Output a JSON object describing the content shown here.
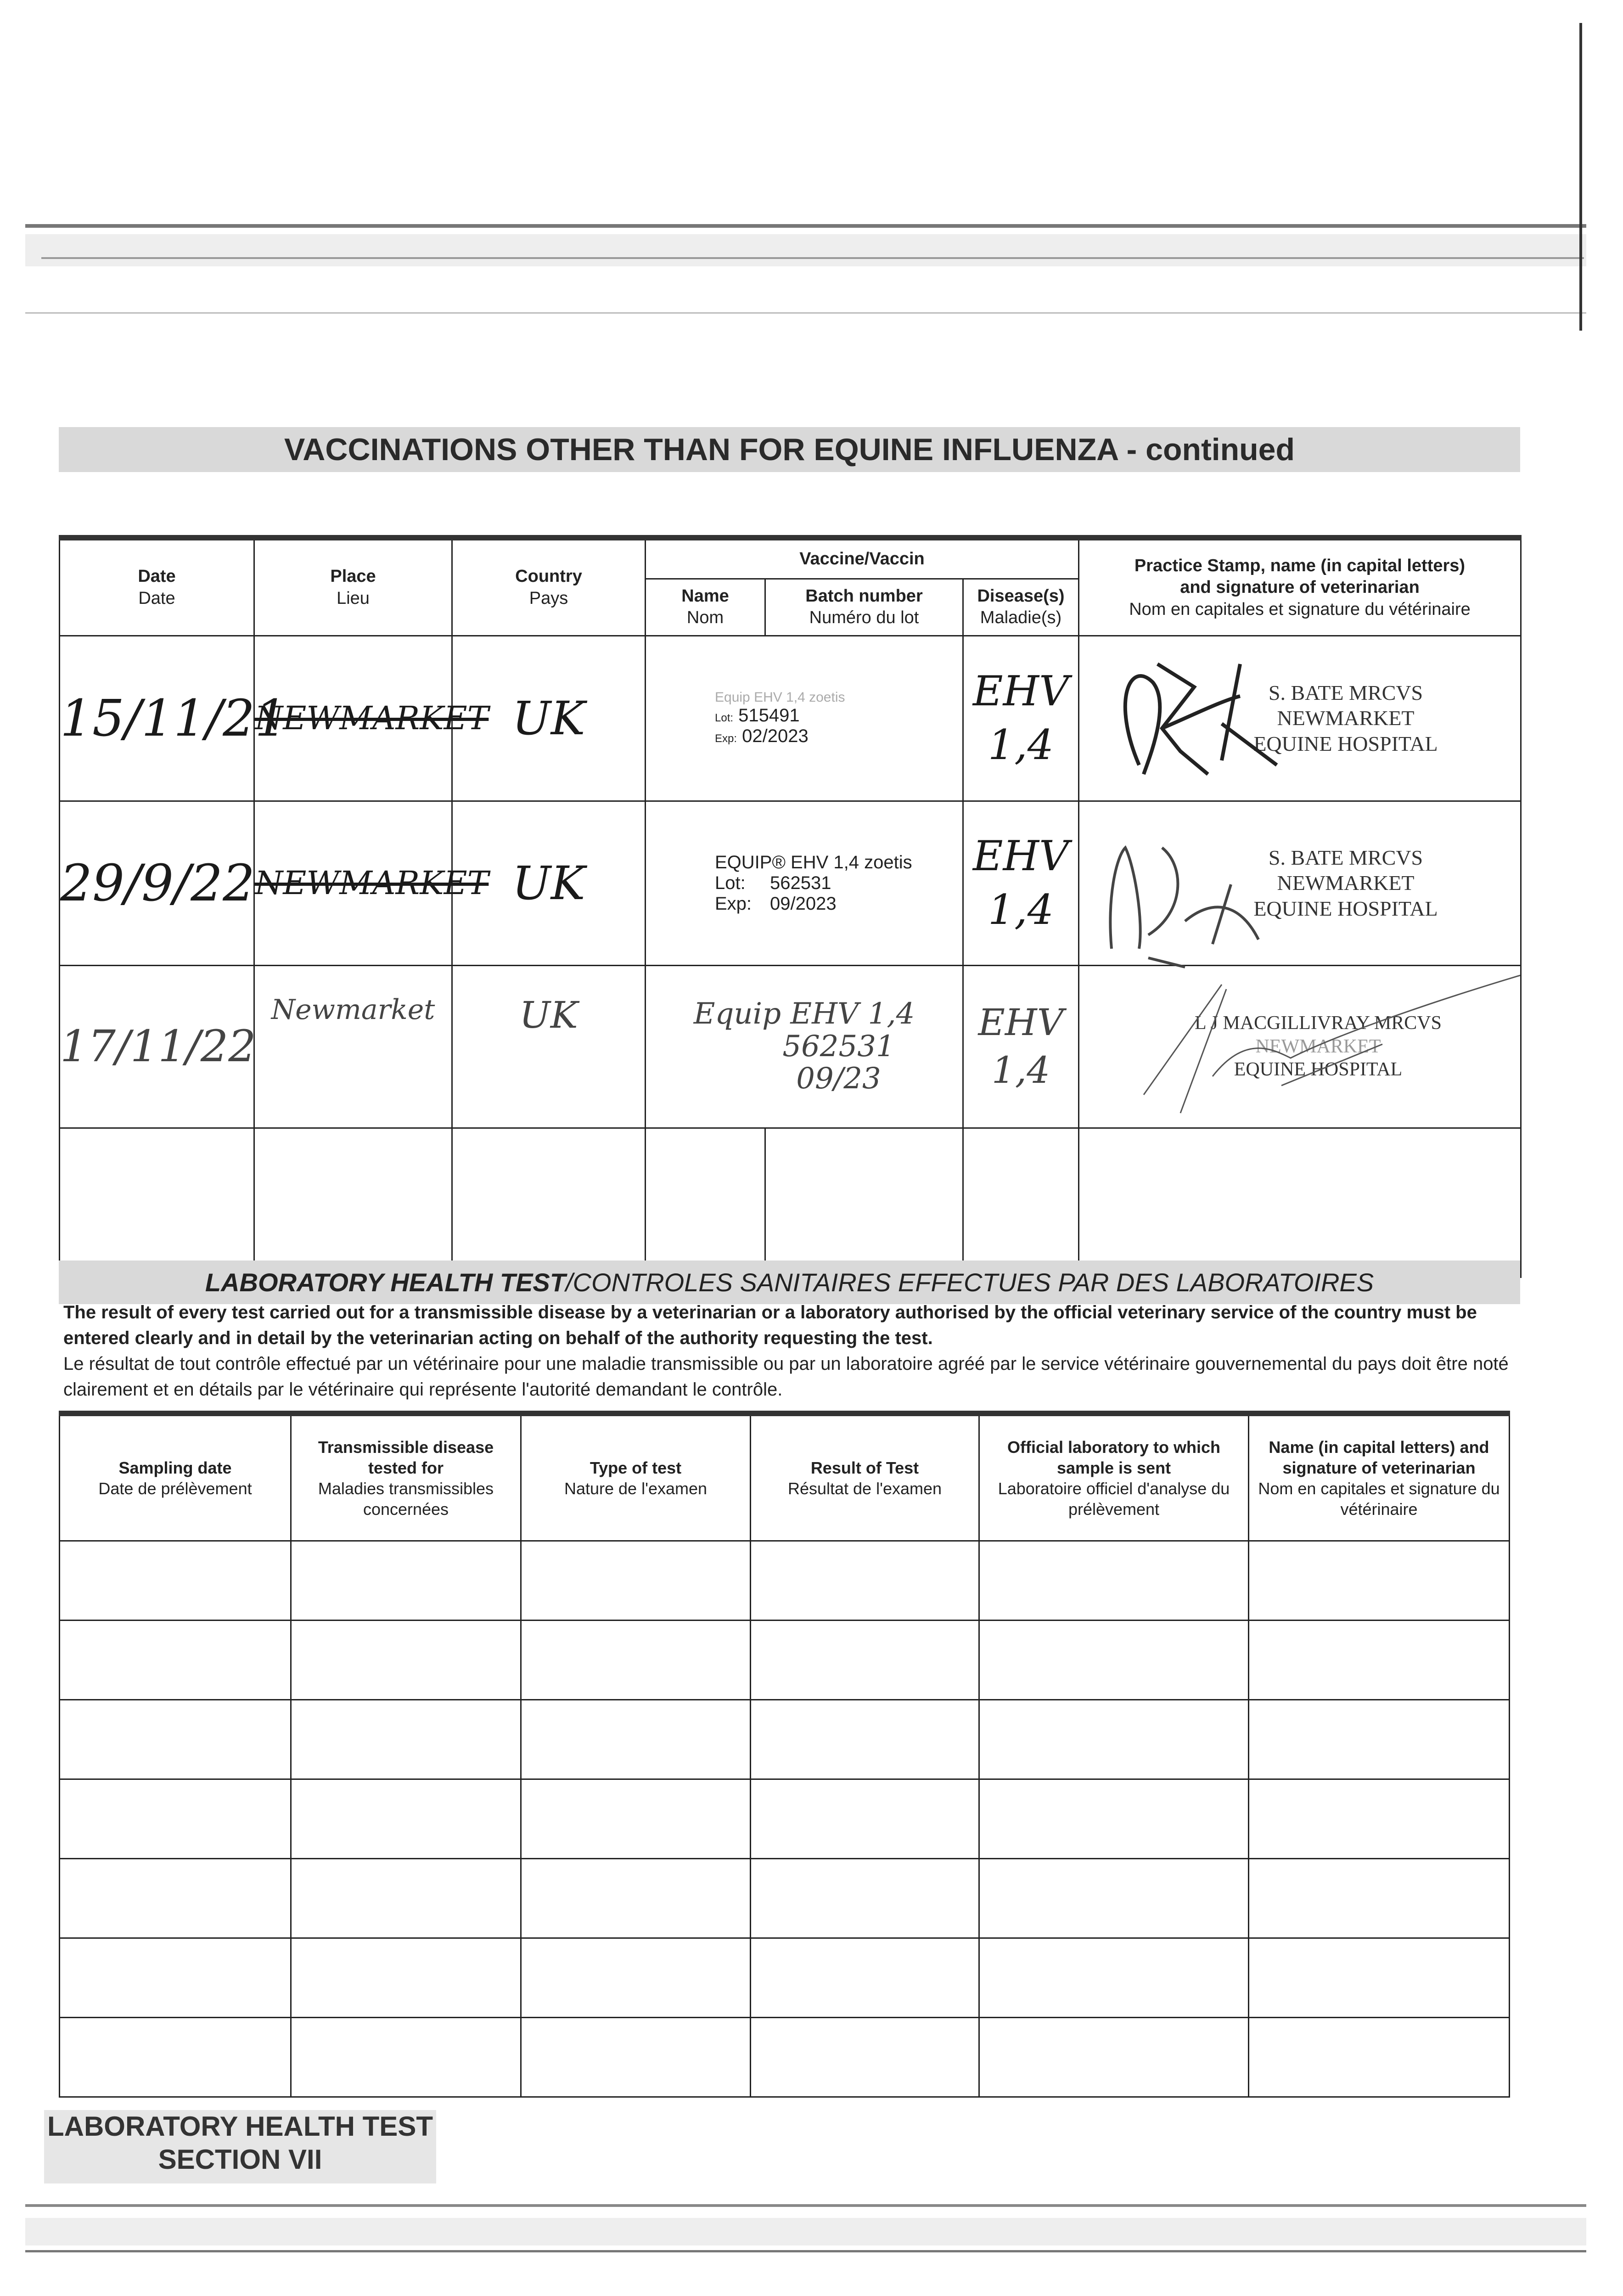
{
  "page_title": "VACCINATIONS OTHER THAN FOR EQUINE INFLUENZA - continued",
  "vaccination_table": {
    "headers": {
      "date": {
        "en": "Date",
        "fr": "Date"
      },
      "place": {
        "en": "Place",
        "fr": "Lieu"
      },
      "country": {
        "en": "Country",
        "fr": "Pays"
      },
      "vaccine_group": "Vaccine/Vaccin",
      "name": {
        "en": "Name",
        "fr": "Nom"
      },
      "batch": {
        "en": "Batch number",
        "fr": "Numéro du lot"
      },
      "disease": {
        "en": "Disease(s)",
        "fr": "Maladie(s)"
      },
      "stamp": {
        "en1": "Practice Stamp, name (in capital letters)",
        "en2": "and signature of veterinarian",
        "fr": "Nom en capitales et signature du vétérinaire"
      }
    },
    "rows": [
      {
        "date": "15/11/21",
        "place": "NEWMARKET",
        "country": "UK",
        "batch": {
          "product": "Equip EHV 1,4 zoetis",
          "lot_label": "Lot:",
          "lot": "515491",
          "exp_label": "Exp:",
          "exp": "02/2023"
        },
        "disease": [
          "EHV",
          "1,4"
        ],
        "stamp": [
          "S. BATE MRCVS",
          "NEWMARKET",
          "EQUINE HOSPITAL"
        ]
      },
      {
        "date": "29/9/22",
        "place": "NEWMARKET",
        "country": "UK",
        "batch": {
          "product": "EQUIP® EHV 1,4 zoetis",
          "lot_label": "Lot:",
          "lot": "562531",
          "exp_label": "Exp:",
          "exp": "09/2023"
        },
        "disease": [
          "EHV",
          "1,4"
        ],
        "stamp": [
          "S. BATE MRCVS",
          "NEWMARKET",
          "EQUINE HOSPITAL"
        ]
      },
      {
        "date": "17/11/22",
        "place": "Newmarket",
        "country": "UK",
        "name_handwritten": "Equip EHV 1,4",
        "batch_handwritten": [
          "562531",
          "09/23"
        ],
        "disease": [
          "EHV",
          "1,4"
        ],
        "stamp": [
          "L J MACGILLIVRAY MRCVS",
          "NEWMARKET",
          "EQUINE HOSPITAL"
        ]
      }
    ]
  },
  "lab_section": {
    "title_bold": "LABORATORY HEALTH TEST",
    "title_rest": "/CONTROLES SANITAIRES EFFECTUES PAR DES LABORATOIRES",
    "paragraph_en": "The result of every test carried out for a transmissible disease by a veterinarian or a laboratory authorised by the official veterinary service of the country must be entered clearly and in detail by the veterinarian acting on behalf of the authority requesting the test.",
    "paragraph_fr": "Le résultat de tout contrôle effectué par un vétérinaire pour une maladie transmissible ou par un laboratoire agréé par le service vétérinaire gouvernemental du pays doit être noté clairement et en détails par le vétérinaire qui représente l'autorité demandant le contrôle.",
    "headers": [
      {
        "en": "Sampling date",
        "fr": "Date de prélèvement"
      },
      {
        "en": "Transmissible disease tested for",
        "fr": "Maladies transmissibles concernées"
      },
      {
        "en": "Type of test",
        "fr": "Nature de l'examen"
      },
      {
        "en": "Result of Test",
        "fr": "Résultat de l'examen"
      },
      {
        "en": "Official laboratory to which sample is sent",
        "fr": "Laboratoire officiel d'analyse du prélèvement"
      },
      {
        "en": "Name (in capital letters) and signature of veterinarian",
        "fr": "Nom en capitales et signature du vétérinaire"
      }
    ]
  },
  "footer": {
    "line1": "LABORATORY HEALTH TEST",
    "line2": "SECTION VII"
  }
}
